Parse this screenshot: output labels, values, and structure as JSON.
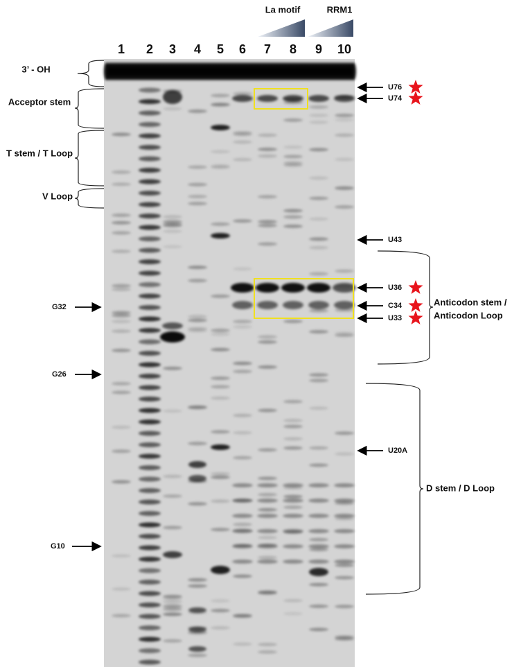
{
  "lanes": [
    "1",
    "2",
    "3",
    "4",
    "5",
    "6",
    "7",
    "8",
    "9",
    "10"
  ],
  "titrations": [
    "La motif",
    "RRM1"
  ],
  "regions_left": [
    "3’ - OH",
    "Acceptor stem",
    "T stem / T Loop",
    "V Loop"
  ],
  "markers_left": [
    "G32",
    "G26",
    "G10"
  ],
  "markers_right": [
    "U76",
    "U74",
    "U43",
    "U36",
    "C34",
    "U33",
    "U20A"
  ],
  "regions_right": [
    {
      "lines": [
        "Anticodon stem /",
        "Anticodon Loop"
      ]
    },
    {
      "lines": [
        "D stem / D Loop"
      ]
    }
  ]
}
